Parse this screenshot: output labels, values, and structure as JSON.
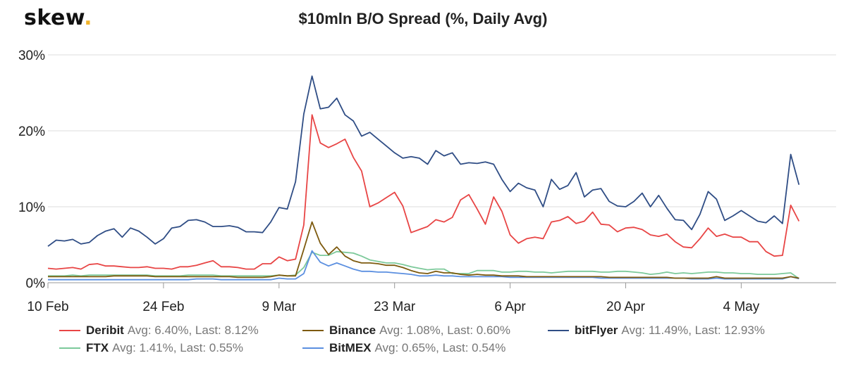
{
  "brand": {
    "name": "skew",
    "dot": "."
  },
  "chart_data": {
    "type": "line",
    "title": "$10mln B/O Spread (%, Daily Avg)",
    "ylim": [
      0,
      30
    ],
    "y_ticks": [
      "0%",
      "10%",
      "20%",
      "30%"
    ],
    "x_ticks": [
      "10 Feb",
      "24 Feb",
      "9 Mar",
      "23 Mar",
      "6 Apr",
      "20 Apr",
      "4 May"
    ],
    "x_tick_days": [
      0,
      14,
      28,
      42,
      56,
      70,
      84
    ],
    "x_range_days": [
      0,
      95.5
    ],
    "grid": "horizontal",
    "legend_position": "bottom",
    "series": [
      {
        "name": "Deribit",
        "color": "#e84545",
        "avg_label": "Avg: 6.40%, Last: 8.12%",
        "values": [
          1.9,
          1.8,
          1.9,
          2.0,
          1.8,
          2.4,
          2.5,
          2.2,
          2.2,
          2.1,
          2.0,
          2.0,
          2.1,
          1.9,
          1.9,
          1.8,
          2.1,
          2.1,
          2.3,
          2.6,
          2.9,
          2.1,
          2.1,
          2.0,
          1.8,
          1.8,
          2.5,
          2.5,
          3.4,
          2.9,
          3.1,
          7.6,
          22.1,
          18.4,
          17.8,
          18.3,
          18.9,
          16.5,
          14.7,
          10.0,
          10.5,
          11.2,
          11.9,
          10.1,
          6.6,
          7.0,
          7.4,
          8.3,
          8.0,
          8.6,
          10.9,
          11.6,
          9.7,
          7.7,
          11.3,
          9.4,
          6.3,
          5.2,
          5.8,
          6.0,
          5.8,
          8.0,
          8.2,
          8.7,
          7.8,
          8.1,
          9.3,
          7.7,
          7.6,
          6.7,
          7.2,
          7.3,
          7.0,
          6.3,
          6.1,
          6.4,
          5.4,
          4.7,
          4.6,
          5.8,
          7.2,
          6.1,
          6.4,
          6.0,
          6.0,
          5.4,
          5.4,
          4.1,
          3.5,
          3.6,
          10.2,
          8.1
        ]
      },
      {
        "name": "Binance",
        "color": "#7d5a0e",
        "avg_label": "Avg: 1.08%, Last: 0.60%",
        "values": [
          0.8,
          0.8,
          0.8,
          0.8,
          0.8,
          0.8,
          0.8,
          0.8,
          0.9,
          0.9,
          0.9,
          0.9,
          0.9,
          0.8,
          0.8,
          0.8,
          0.8,
          0.8,
          0.8,
          0.8,
          0.8,
          0.8,
          0.8,
          0.7,
          0.7,
          0.7,
          0.7,
          0.8,
          1.0,
          0.9,
          0.9,
          4.4,
          8.0,
          5.2,
          3.7,
          4.7,
          3.5,
          2.9,
          2.6,
          2.6,
          2.5,
          2.3,
          2.3,
          2.0,
          1.6,
          1.3,
          1.2,
          1.5,
          1.3,
          1.3,
          1.1,
          1.0,
          1.1,
          1.0,
          1.0,
          0.9,
          0.9,
          0.9,
          0.8,
          0.8,
          0.8,
          0.8,
          0.8,
          0.8,
          0.8,
          0.8,
          0.8,
          0.8,
          0.7,
          0.7,
          0.7,
          0.7,
          0.7,
          0.7,
          0.7,
          0.7,
          0.6,
          0.6,
          0.6,
          0.6,
          0.6,
          0.8,
          0.6,
          0.6,
          0.6,
          0.6,
          0.6,
          0.6,
          0.6,
          0.6,
          0.8,
          0.6
        ]
      },
      {
        "name": "bitFlyer",
        "color": "#2f4d85",
        "avg_label": "Avg: 11.49%, Last: 12.93%",
        "values": [
          4.8,
          5.6,
          5.5,
          5.7,
          5.1,
          5.3,
          6.2,
          6.8,
          7.1,
          6.0,
          7.2,
          6.8,
          6.0,
          5.1,
          5.8,
          7.2,
          7.4,
          8.2,
          8.3,
          8.0,
          7.4,
          7.4,
          7.5,
          7.3,
          6.7,
          6.7,
          6.6,
          8.0,
          9.9,
          9.7,
          13.3,
          22.2,
          27.2,
          22.9,
          23.1,
          24.3,
          22.1,
          21.3,
          19.3,
          19.8,
          18.9,
          18.0,
          17.1,
          16.4,
          16.6,
          16.4,
          15.6,
          17.4,
          16.7,
          17.1,
          15.6,
          15.8,
          15.7,
          15.9,
          15.6,
          13.6,
          12.0,
          13.1,
          12.5,
          12.2,
          10.0,
          13.6,
          12.3,
          12.8,
          14.5,
          11.3,
          12.2,
          12.4,
          10.7,
          10.1,
          10.0,
          10.7,
          11.8,
          10.0,
          11.5,
          9.8,
          8.3,
          8.2,
          7.0,
          9.0,
          12.0,
          11.0,
          8.2,
          8.8,
          9.5,
          8.8,
          8.1,
          7.9,
          8.8,
          7.8,
          16.9,
          12.9
        ]
      },
      {
        "name": "FTX",
        "color": "#7cc99a",
        "avg_label": "Avg: 1.41%, Last: 0.55%",
        "values": [
          0.9,
          0.9,
          0.9,
          1.0,
          0.9,
          1.0,
          1.0,
          1.0,
          1.0,
          1.0,
          1.0,
          1.0,
          1.0,
          0.9,
          0.9,
          0.9,
          0.9,
          1.0,
          1.0,
          1.0,
          1.0,
          0.9,
          0.9,
          0.9,
          0.9,
          0.9,
          0.9,
          0.9,
          1.0,
          0.9,
          1.0,
          2.0,
          4.0,
          3.6,
          3.6,
          4.1,
          4.0,
          3.9,
          3.5,
          3.0,
          2.8,
          2.6,
          2.6,
          2.4,
          2.1,
          1.9,
          1.7,
          1.8,
          1.8,
          1.2,
          1.2,
          1.2,
          1.6,
          1.6,
          1.6,
          1.4,
          1.4,
          1.5,
          1.5,
          1.4,
          1.4,
          1.3,
          1.4,
          1.5,
          1.5,
          1.5,
          1.5,
          1.4,
          1.4,
          1.5,
          1.5,
          1.4,
          1.3,
          1.1,
          1.2,
          1.4,
          1.2,
          1.3,
          1.2,
          1.3,
          1.4,
          1.4,
          1.3,
          1.3,
          1.2,
          1.2,
          1.1,
          1.1,
          1.1,
          1.2,
          1.3,
          0.55
        ]
      },
      {
        "name": "BitMEX",
        "color": "#5b8fe0",
        "avg_label": "Avg: 0.65%, Last: 0.54%",
        "values": [
          0.4,
          0.4,
          0.4,
          0.4,
          0.4,
          0.4,
          0.4,
          0.4,
          0.4,
          0.4,
          0.4,
          0.4,
          0.4,
          0.4,
          0.4,
          0.4,
          0.4,
          0.4,
          0.5,
          0.5,
          0.5,
          0.4,
          0.4,
          0.4,
          0.4,
          0.4,
          0.4,
          0.4,
          0.6,
          0.5,
          0.5,
          1.2,
          4.2,
          2.7,
          2.2,
          2.6,
          2.2,
          1.8,
          1.5,
          1.5,
          1.4,
          1.4,
          1.3,
          1.2,
          1.1,
          0.9,
          0.9,
          1.0,
          0.9,
          0.9,
          0.8,
          0.8,
          0.8,
          0.8,
          0.8,
          0.8,
          0.7,
          0.7,
          0.7,
          0.7,
          0.7,
          0.7,
          0.7,
          0.7,
          0.7,
          0.7,
          0.7,
          0.6,
          0.6,
          0.6,
          0.6,
          0.6,
          0.6,
          0.6,
          0.6,
          0.6,
          0.6,
          0.6,
          0.5,
          0.5,
          0.5,
          0.6,
          0.5,
          0.5,
          0.5,
          0.5,
          0.5,
          0.5,
          0.5,
          0.5,
          0.8,
          0.54
        ]
      }
    ]
  }
}
